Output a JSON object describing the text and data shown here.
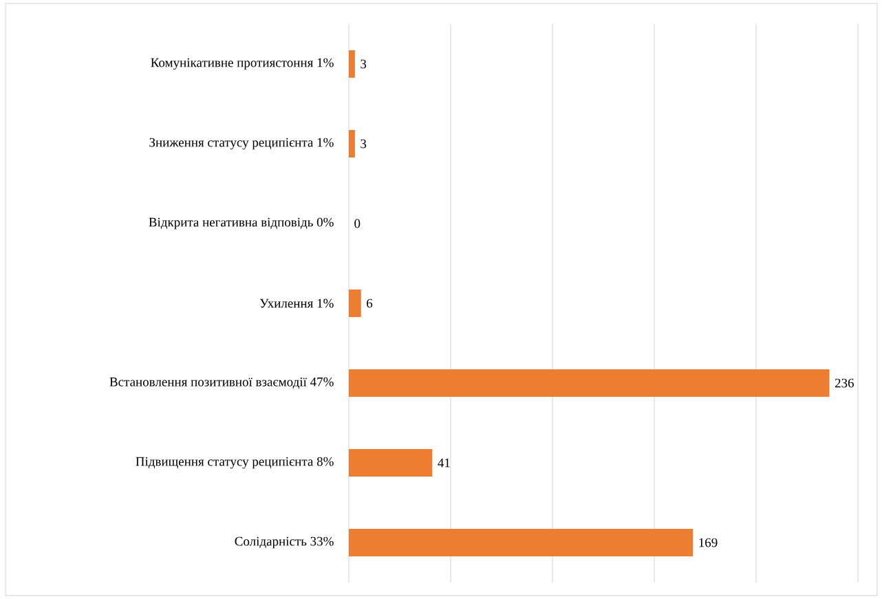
{
  "chart_data": {
    "type": "bar",
    "orientation": "horizontal",
    "categories": [
      "Комунікативне протиястоння 1%",
      "Зниження статусу реципієнта 1%",
      "Відкрита негативна відповідь 0%",
      "Ухилення 1%",
      "Встановлення позитивної взаємодії 47%",
      "Підвищення статусу реципієнта 8%",
      "Солідарність 33%"
    ],
    "values": [
      3,
      3,
      0,
      6,
      236,
      41,
      169
    ],
    "color": "#ed7d31",
    "xlim": [
      0,
      250
    ],
    "xticks": [
      {
        "value": 0,
        "label": null
      },
      {
        "value": 50,
        "label": null
      },
      {
        "value": 100,
        "label": null
      },
      {
        "value": 150,
        "label": null
      },
      {
        "value": 200,
        "label": null
      },
      {
        "value": 250,
        "label": null
      }
    ],
    "tick_labels": "y",
    "grid": "x",
    "data_labels": true
  }
}
